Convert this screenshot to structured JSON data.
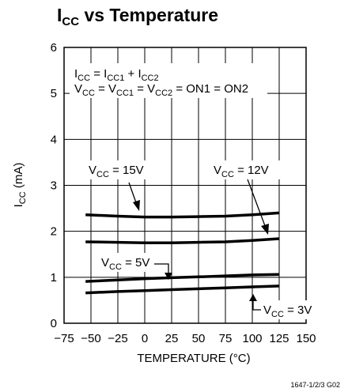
{
  "chart_data": {
    "type": "line",
    "title": {
      "main": "I",
      "sub": "CC",
      "rest": " vs Temperature"
    },
    "xlabel": "TEMPERATURE (°C)",
    "ylabel": {
      "main": "I",
      "sub": "CC",
      "rest": " (mA)"
    },
    "xlim": [
      -75,
      150
    ],
    "ylim": [
      0,
      6
    ],
    "x_ticks": [
      "−75",
      "−50",
      "−25",
      "0",
      "25",
      "50",
      "75",
      "100",
      "125",
      "150"
    ],
    "y_ticks": [
      "0",
      "1",
      "2",
      "3",
      "4",
      "5",
      "6"
    ],
    "grid": true,
    "series": [
      {
        "name": "VCC = 15V",
        "x": [
          -55,
          -25,
          0,
          25,
          50,
          75,
          100,
          125
        ],
        "y": [
          2.36,
          2.33,
          2.31,
          2.31,
          2.32,
          2.33,
          2.36,
          2.4
        ]
      },
      {
        "name": "VCC = 12V",
        "x": [
          -55,
          -25,
          0,
          25,
          50,
          75,
          100,
          125
        ],
        "y": [
          1.77,
          1.76,
          1.75,
          1.75,
          1.76,
          1.77,
          1.8,
          1.84
        ]
      },
      {
        "name": "VCC = 5V",
        "x": [
          -55,
          -25,
          0,
          25,
          50,
          75,
          100,
          125
        ],
        "y": [
          0.91,
          0.94,
          0.97,
          0.99,
          1.01,
          1.03,
          1.05,
          1.06
        ]
      },
      {
        "name": "VCC = 3V",
        "x": [
          -55,
          -25,
          0,
          25,
          50,
          75,
          100,
          125
        ],
        "y": [
          0.66,
          0.69,
          0.71,
          0.73,
          0.75,
          0.77,
          0.79,
          0.81
        ]
      }
    ],
    "annotations": {
      "formula_1": {
        "a": "I",
        "a_sub": "CC",
        "b": " = I",
        "b_sub": "CC1",
        "c": " + I",
        "c_sub": "CC2"
      },
      "formula_2": {
        "a": "V",
        "a_sub": "CC",
        "b": " = V",
        "b_sub": "CC1",
        "c": " = V",
        "c_sub": "CC2",
        "d": " = ON1 = ON2"
      },
      "label_15v": {
        "main": "V",
        "sub": "CC",
        "rest": " = 15V"
      },
      "label_12v": {
        "main": "V",
        "sub": "CC",
        "rest": " = 12V"
      },
      "label_5v": {
        "main": "V",
        "sub": "CC",
        "rest": " = 5V"
      },
      "label_3v": {
        "main": "V",
        "sub": "CC",
        "rest": " = 3V"
      }
    },
    "footnote": "1647-1/2/3 G02"
  }
}
